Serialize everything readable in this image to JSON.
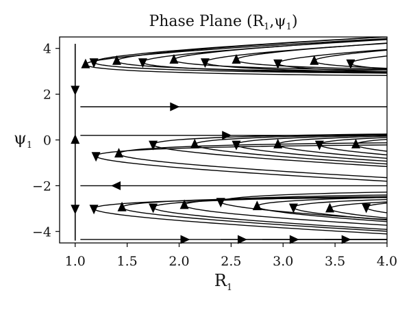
{
  "chart_data": {
    "type": "streamplot",
    "title": "Phase Plane (R",
    "title_sub1": "1",
    "title_mid": ",ψ",
    "title_sub2": "1",
    "title_end": ")",
    "xlabel": "R",
    "xlabel_sub": "1",
    "ylabel": "ψ",
    "ylabel_sub": "1",
    "xlim": [
      0.85,
      4.0
    ],
    "ylim": [
      -4.5,
      4.5
    ],
    "xticks": [
      "1.0",
      "1.5",
      "2.0",
      "2.5",
      "3.0",
      "3.5",
      "4.0"
    ],
    "yticks": [
      "4",
      "2",
      "0",
      "−2",
      "−4"
    ],
    "line_color": "#000000",
    "streamlines": [
      {
        "r0": 1.1,
        "psi0": 3.3,
        "dir": 1
      },
      {
        "r0": 1.18,
        "psi0": 3.4,
        "dir": -1
      },
      {
        "r0": 1.4,
        "psi0": 3.45,
        "dir": 1
      },
      {
        "r0": 1.65,
        "psi0": 3.4,
        "dir": -1
      },
      {
        "r0": 1.95,
        "psi0": 3.5,
        "dir": 1
      },
      {
        "r0": 2.25,
        "psi0": 3.4,
        "dir": -1
      },
      {
        "r0": 2.55,
        "psi0": 3.5,
        "dir": 1
      },
      {
        "r0": 2.95,
        "psi0": 3.35,
        "dir": -1
      },
      {
        "r0": 3.3,
        "psi0": 3.45,
        "dir": 1
      },
      {
        "r0": 3.65,
        "psi0": 3.35,
        "dir": -1
      },
      {
        "r0": 1.2,
        "psi0": -0.7,
        "dir": -1
      },
      {
        "r0": 1.42,
        "psi0": -0.6,
        "dir": 1
      },
      {
        "r0": 1.75,
        "psi0": -0.2,
        "dir": -1
      },
      {
        "r0": 2.15,
        "psi0": -0.2,
        "dir": 1
      },
      {
        "r0": 2.55,
        "psi0": -0.2,
        "dir": -1
      },
      {
        "r0": 2.95,
        "psi0": -0.2,
        "dir": 1
      },
      {
        "r0": 3.35,
        "psi0": -0.2,
        "dir": -1
      },
      {
        "r0": 3.7,
        "psi0": -0.2,
        "dir": 1
      },
      {
        "r0": 1.18,
        "psi0": -3.0,
        "dir": -1
      },
      {
        "r0": 1.45,
        "psi0": -2.95,
        "dir": 1
      },
      {
        "r0": 1.75,
        "psi0": -2.95,
        "dir": -1
      },
      {
        "r0": 2.05,
        "psi0": -2.85,
        "dir": 1
      },
      {
        "r0": 2.4,
        "psi0": -2.7,
        "dir": -1
      },
      {
        "r0": 2.75,
        "psi0": -2.9,
        "dir": 1
      },
      {
        "r0": 3.1,
        "psi0": -2.95,
        "dir": -1
      },
      {
        "r0": 3.45,
        "psi0": -3.0,
        "dir": 1
      },
      {
        "r0": 3.8,
        "psi0": -2.95,
        "dir": -1
      }
    ],
    "flat_lines": [
      {
        "psi": 1.45,
        "r_from": 1.05,
        "r_to": 4.0,
        "arrow_r": 1.95,
        "dir": 1
      },
      {
        "psi": -4.35,
        "r_from": 1.05,
        "r_to": 4.0,
        "arrow_r": 2.05,
        "dir": 1
      },
      {
        "psi": -4.35,
        "r_from": 2.4,
        "r_to": 4.0,
        "arrow_r": 2.6,
        "dir": 1
      },
      {
        "psi": -4.35,
        "r_from": 2.8,
        "r_to": 4.0,
        "arrow_r": 3.1,
        "dir": 1
      },
      {
        "psi": -4.35,
        "r_from": 3.4,
        "r_to": 4.0,
        "arrow_r": 3.6,
        "dir": 1
      },
      {
        "psi": 0.2,
        "r_from": 1.05,
        "r_to": 4.0,
        "arrow_r": 2.45,
        "dir": 1
      },
      {
        "psi": -2.0,
        "r_from": 1.05,
        "r_to": 4.0,
        "arrow_r": 1.4,
        "dir": -1
      }
    ],
    "vertical_line": {
      "r": 1.0,
      "psi_from": -4.4,
      "psi_to": 4.2,
      "arrows": [
        {
          "psi": 2.2,
          "dir": -1
        },
        {
          "psi": 0.0,
          "dir": 1
        },
        {
          "psi": -3.0,
          "dir": -1
        }
      ]
    }
  }
}
